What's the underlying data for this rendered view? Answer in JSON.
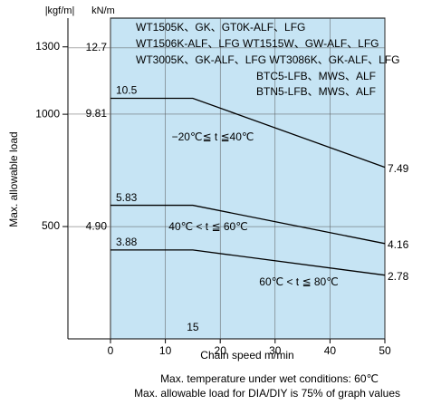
{
  "chart_data": {
    "type": "line",
    "x_label": "Chain speed  m/min",
    "y_label": "Max. allowable load",
    "y_unit": "kN/m",
    "y2_unit": "|kgf/m|",
    "x": [
      0,
      15,
      50
    ],
    "xlim": [
      0,
      50
    ],
    "xticks": [
      0,
      10,
      20,
      30,
      40,
      50
    ],
    "ylim": [
      0,
      14
    ],
    "yticks": [
      {
        "value": 4.9,
        "label": "4.90"
      },
      9.81,
      12.7
    ],
    "y2lim": [
      0,
      1428
    ],
    "y2ticks": [
      500,
      1000,
      1300
    ],
    "series": [
      {
        "name": "−20℃≦ t ≦40℃",
        "color": "#000000",
        "values": [
          10.5,
          10.5,
          7.49
        ]
      },
      {
        "name": "40℃ < t ≦ 60℃",
        "color": "#000000",
        "values": [
          5.83,
          5.83,
          4.16
        ]
      },
      {
        "name": "60℃ < t ≦ 80℃",
        "color": "#000000",
        "values": [
          3.88,
          3.88,
          2.78
        ]
      }
    ],
    "x_annotation": 15,
    "models": [
      "WT1505K、GK、GT0K-ALF、LFG",
      "WT1506K-ALF、LFG  WT1515W、GW-ALF、LFG",
      "WT3005K、GK-ALF、LFG WT3086K、GK-ALF、LFG",
      "BTC5-LFB、MWS、ALF",
      "BTN5-LFB、MWS、ALF"
    ],
    "notes": [
      "Max. temperature under wet conditions: 60℃",
      "Max. allowable load for DIA/DIY is 75% of graph values"
    ],
    "background": "#c6e4f4",
    "grid": true
  }
}
